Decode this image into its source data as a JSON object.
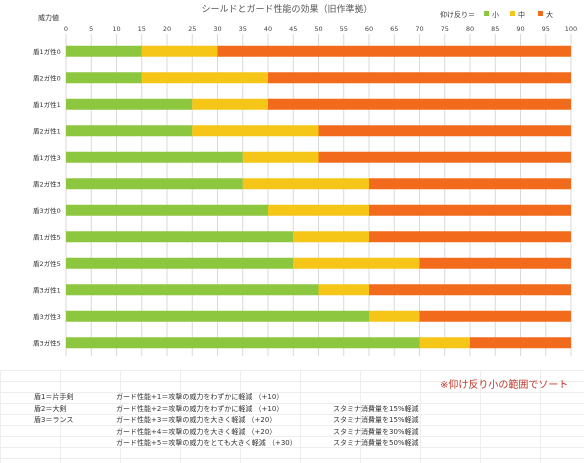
{
  "chart_data": {
    "type": "bar",
    "orientation": "horizontal",
    "stacked": true,
    "title": "シールドとガード性能の効果（旧作準拠）",
    "axis_title": "威力値",
    "legend_title": "仰け反り＝",
    "legend_position": "top-right",
    "xlim": [
      0,
      100
    ],
    "x_ticks": [
      "0",
      "5",
      "10",
      "15",
      "20",
      "25",
      "30",
      "35",
      "40",
      "45",
      "50",
      "55",
      "60",
      "65",
      "70",
      "75",
      "80",
      "85",
      "90",
      "95",
      "100"
    ],
    "grid": true,
    "categories": [
      "盾1ガ性0",
      "盾2ガ性0",
      "盾1ガ性1",
      "盾2ガ性1",
      "盾1ガ性3",
      "盾2ガ性3",
      "盾3ガ性0",
      "盾1ガ性5",
      "盾2ガ性5",
      "盾3ガ性1",
      "盾3ガ性3",
      "盾3ガ性5"
    ],
    "series": [
      {
        "name": "小",
        "color": "#8dc63f",
        "values": [
          15,
          15,
          25,
          25,
          35,
          35,
          40,
          45,
          45,
          50,
          60,
          70
        ]
      },
      {
        "name": "中",
        "color": "#f5c518",
        "values": [
          15,
          25,
          15,
          25,
          15,
          25,
          20,
          15,
          25,
          10,
          10,
          10
        ]
      },
      {
        "name": "大",
        "color": "#f26b1d",
        "values": [
          70,
          60,
          60,
          50,
          50,
          40,
          40,
          40,
          30,
          40,
          30,
          20
        ]
      }
    ]
  },
  "notes": {
    "shields": [
      "盾1＝片手剣",
      "盾2＝大剣",
      "盾3＝ランス"
    ],
    "guard": [
      "ガード性能+1＝攻撃の威力をわずかに軽減 （+10）",
      "ガード性能+2＝攻撃の威力をわずかに軽減 （+10）",
      "ガード性能+3＝攻撃の威力を大きく軽減 （+20）",
      "ガード性能+4＝攻撃の威力を大きく軽減 （+20）",
      "ガード性能+5＝攻撃の威力をとても大きく軽減 （+30）"
    ],
    "stamina": [
      "スタミナ消費量を15%軽減",
      "スタミナ消費量を15%軽減",
      "スタミナ消費量を30%軽減",
      "スタミナ消費量を50%軽減"
    ],
    "footnote": "※仰け反り小の範囲でソート"
  }
}
